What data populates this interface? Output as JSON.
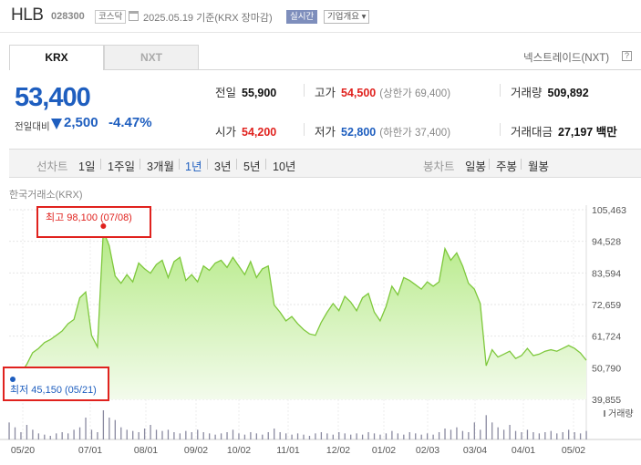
{
  "header": {
    "name": "HLB",
    "code": "028300",
    "market": "코스닥",
    "date": "2025.05.19 기준(KRX 장마감)",
    "realtime": "실시간",
    "overview": "기업개요"
  },
  "tabs": [
    "KRX",
    "NXT"
  ],
  "nxt_link": "넥스트레이드(NXT)",
  "help_glyph": "?",
  "quote": {
    "price": "53,400",
    "change_label": "전일대비",
    "change": "2,500",
    "change_pct": "-4.47%"
  },
  "stats": {
    "prev_label": "전일",
    "prev": "55,900",
    "high_label": "고가",
    "high": "54,500",
    "upper_limit": "(상한가 69,400)",
    "volume_label": "거래량",
    "volume": "509,892",
    "open_label": "시가",
    "open": "54,200",
    "low_label": "저가",
    "low": "52,800",
    "lower_limit": "(하한가 37,400)",
    "amount_label": "거래대금",
    "amount": "27,197 백만"
  },
  "period_bar": {
    "line_label": "선차트",
    "periods": [
      "1일",
      "1주일",
      "3개월",
      "1년",
      "3년",
      "5년",
      "10년"
    ],
    "selected": "1년",
    "candle_label": "봉차트",
    "candles": [
      "일봉",
      "주봉",
      "월봉"
    ]
  },
  "source": "한국거래소(KRX)",
  "chart_data": {
    "type": "area",
    "ylim": [
      39855,
      105463
    ],
    "yticks": [
      "105,463",
      "94,528",
      "83,594",
      "72,659",
      "61,724",
      "50,790",
      "39,855"
    ],
    "xticks": [
      "05/20",
      "07/01",
      "08/01",
      "09/02",
      "10/02",
      "11/01",
      "12/02",
      "01/02",
      "02/03",
      "03/04",
      "04/01",
      "05/02"
    ],
    "max_label": "최고 98,100 (07/08)",
    "min_label": "최저 45,150 (05/21)",
    "volume_label": "거래량",
    "colors": {
      "line": "#7ec83c",
      "fill": "#c4efa0",
      "max": "#e0221e",
      "min": "#1e5ebf"
    },
    "prices": [
      45150,
      46500,
      49000,
      52000,
      56000,
      57500,
      59500,
      60500,
      62000,
      63500,
      66000,
      67500,
      75000,
      77000,
      62000,
      58000,
      98100,
      93000,
      82500,
      80000,
      83000,
      80500,
      87000,
      85000,
      83500,
      86500,
      88000,
      82000,
      87500,
      89000,
      81000,
      83000,
      80500,
      86000,
      84500,
      87000,
      88000,
      85500,
      89000,
      86000,
      83000,
      87500,
      82000,
      85000,
      86000,
      72500,
      70000,
      67000,
      68500,
      66000,
      64000,
      62500,
      62000,
      66500,
      70000,
      73000,
      70500,
      75500,
      73500,
      70500,
      75000,
      76500,
      70000,
      67000,
      72000,
      79000,
      76000,
      82000,
      81000,
      79500,
      78000,
      80500,
      79000,
      80500,
      92000,
      88000,
      90500,
      86000,
      80000,
      78000,
      73000,
      51500,
      57000,
      54500,
      55500,
      56500,
      54000,
      55000,
      57500,
      55000,
      55500,
      56500,
      57000,
      56500,
      57500,
      58500,
      57500,
      55900,
      53400
    ],
    "volumes": [
      14,
      10,
      6,
      12,
      8,
      5,
      4,
      3,
      5,
      6,
      5,
      8,
      10,
      18,
      8,
      6,
      24,
      18,
      16,
      10,
      8,
      7,
      6,
      9,
      12,
      8,
      7,
      8,
      6,
      5,
      7,
      6,
      8,
      6,
      5,
      4,
      5,
      6,
      8,
      5,
      4,
      6,
      5,
      4,
      6,
      9,
      6,
      5,
      4,
      5,
      4,
      3,
      5,
      6,
      5,
      4,
      6,
      5,
      4,
      5,
      4,
      6,
      5,
      4,
      5,
      7,
      5,
      4,
      6,
      5,
      4,
      5,
      4,
      6,
      9,
      8,
      10,
      7,
      6,
      14,
      8,
      20,
      14,
      10,
      8,
      12,
      7,
      6,
      8,
      6,
      5,
      6,
      7,
      5,
      6,
      8,
      6,
      5,
      7
    ]
  }
}
